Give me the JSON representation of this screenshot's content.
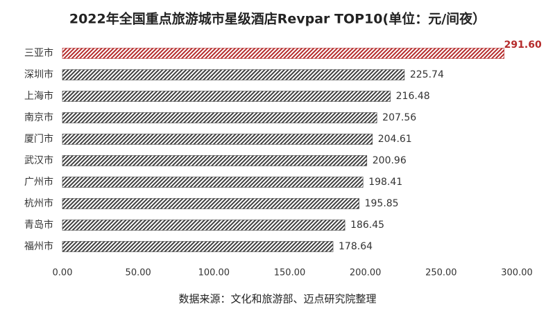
{
  "chart_data": {
    "type": "hbar",
    "title": "2022年全国重点旅游城市星级酒店Revpar TOP10(单位：元/间夜）",
    "source": "数据来源：文化和旅游部、迈点研究院整理",
    "categories": [
      "三亚市",
      "深圳市",
      "上海市",
      "南京市",
      "厦门市",
      "武汉市",
      "广州市",
      "杭州市",
      "青岛市",
      "福州市"
    ],
    "values": [
      291.6,
      225.74,
      216.48,
      207.56,
      204.61,
      200.96,
      198.41,
      195.85,
      186.45,
      178.64
    ],
    "value_labels": [
      "291.60",
      "225.74",
      "216.48",
      "207.56",
      "204.61",
      "200.96",
      "198.41",
      "195.85",
      "186.45",
      "178.64"
    ],
    "colors": [
      "#b52b2b",
      "#404040",
      "#404040",
      "#404040",
      "#404040",
      "#404040",
      "#404040",
      "#404040",
      "#404040",
      "#404040"
    ],
    "xlim": [
      0,
      300
    ],
    "xticks": [
      {
        "value": 0,
        "label": "0.00"
      },
      {
        "value": 50,
        "label": "50.00"
      },
      {
        "value": 100,
        "label": "100.00"
      },
      {
        "value": 150,
        "label": "150.00"
      },
      {
        "value": 200,
        "label": "200.00"
      },
      {
        "value": 250,
        "label": "250.00"
      },
      {
        "value": 300,
        "label": "300.00"
      }
    ]
  }
}
